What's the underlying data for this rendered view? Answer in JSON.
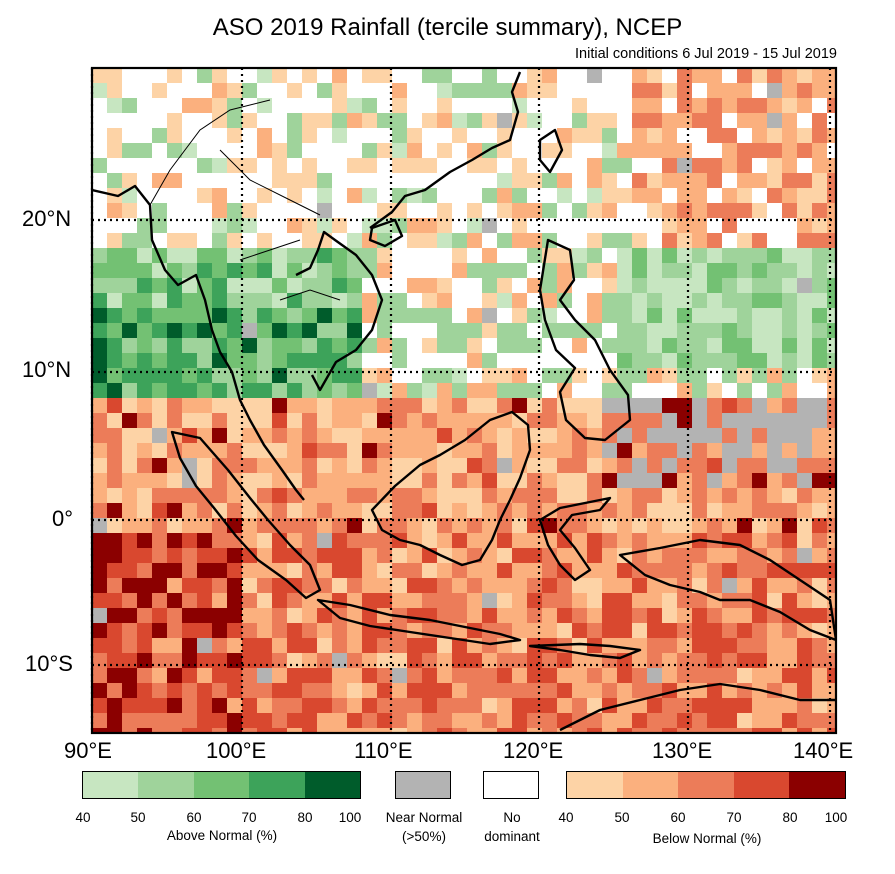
{
  "title": "ASO 2019 Rainfall (tercile summary), NCEP",
  "subtitle": "Initial conditions 6 Jul 2019 - 15 Jul 2019",
  "axes": {
    "lon_labels": [
      "90°E",
      "100°E",
      "110°E",
      "120°E",
      "130°E",
      "140°E"
    ],
    "lat_labels": [
      "20°N",
      "10°N",
      "0°",
      "10°S"
    ]
  },
  "legend": {
    "above": {
      "caption": "Above Normal (%)",
      "ticks": [
        "40",
        "50",
        "60",
        "70",
        "80",
        "100"
      ],
      "colors": [
        "#c7e6c1",
        "#9fd39b",
        "#73c173",
        "#3da35a",
        "#005c2b"
      ]
    },
    "near": {
      "caption_line1": "Near Normal",
      "caption_line2": "(>50%)",
      "color": "#b3b3b3"
    },
    "none": {
      "caption_line1": "No",
      "caption_line2": "dominant",
      "color": "#ffffff"
    },
    "below": {
      "caption": "Below Normal (%)",
      "ticks": [
        "40",
        "50",
        "60",
        "70",
        "80",
        "100"
      ],
      "colors": [
        "#fdd3a6",
        "#fbb07e",
        "#ec7c59",
        "#d9482f",
        "#8b0000"
      ]
    }
  }
}
